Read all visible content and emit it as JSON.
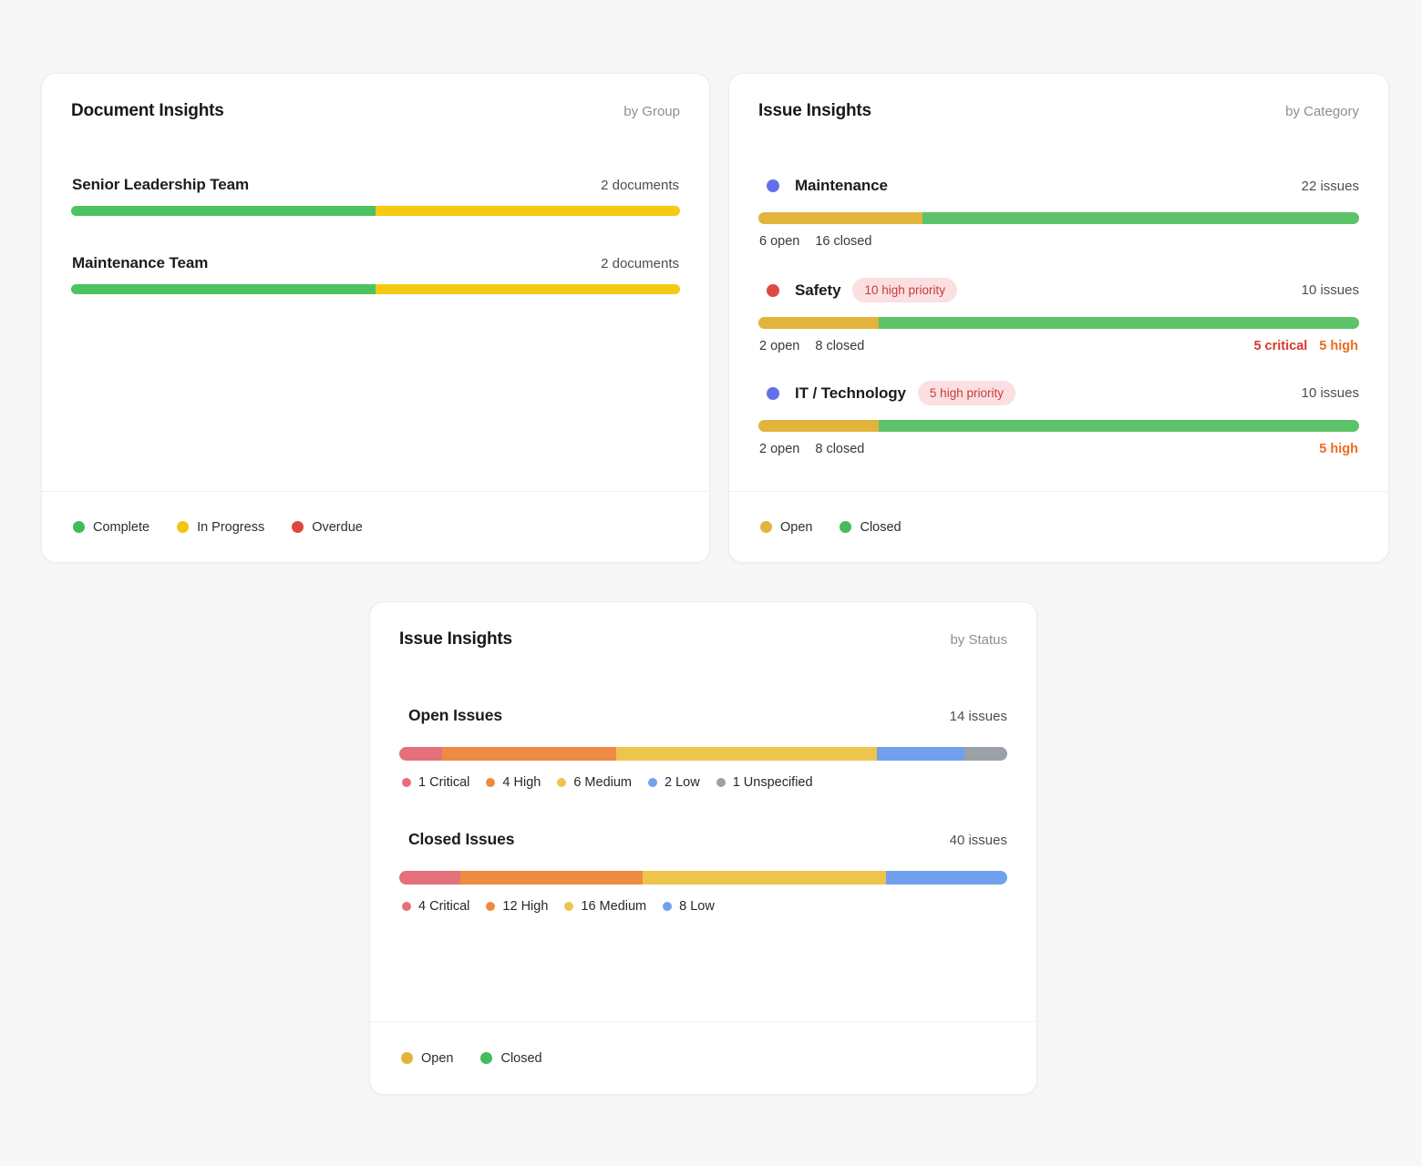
{
  "page": {
    "background": "#f7f7f8"
  },
  "cards": {
    "doc": {
      "title": "Document Insights",
      "subtitle": "by Group",
      "rows": [
        {
          "label": "Senior Leadership Team",
          "count": "2 documents",
          "segments": [
            {
              "label": "Complete",
              "color": "#4cc361",
              "pct": 50
            },
            {
              "label": "In Progress",
              "color": "#f6c913",
              "pct": 50
            }
          ]
        },
        {
          "label": "Maintenance Team",
          "count": "2 documents",
          "segments": [
            {
              "label": "Complete",
              "color": "#4cc361",
              "pct": 50
            },
            {
              "label": "In Progress",
              "color": "#f6c913",
              "pct": 50
            }
          ]
        }
      ],
      "legend": [
        {
          "label": "Complete",
          "color": "#3fbc5a"
        },
        {
          "label": "In Progress",
          "color": "#f2c40e"
        },
        {
          "label": "Overdue",
          "color": "#e0473c"
        }
      ]
    },
    "cat": {
      "title": "Issue Insights",
      "subtitle": "by Category",
      "badge_bg": "#fbdfe1",
      "badge_text_color": "#c63d39",
      "priority_colors": {
        "critical": "#d63a2c",
        "high": "#ee6a1f"
      },
      "rows": [
        {
          "dot_color": "#6470eb",
          "label": "Maintenance",
          "count": "22 issues",
          "open": "6 open",
          "closed": "16 closed",
          "segments": [
            {
              "label": "Open",
              "color": "#e2b43b",
              "pct": 27.3
            },
            {
              "label": "Closed",
              "color": "#5cc368",
              "pct": 72.7
            }
          ]
        },
        {
          "dot_color": "#dc4b41",
          "label": "Safety",
          "badge": "10 high priority",
          "count": "10 issues",
          "open": "2 open",
          "closed": "8 closed",
          "critical": "5 critical",
          "high": "5 high",
          "segments": [
            {
              "label": "Open",
              "color": "#e2b43b",
              "pct": 20
            },
            {
              "label": "Closed",
              "color": "#5cc368",
              "pct": 80
            }
          ]
        },
        {
          "dot_color": "#6470eb",
          "label": "IT / Technology",
          "badge": "5 high priority",
          "count": "10 issues",
          "open": "2 open",
          "closed": "8 closed",
          "high": "5 high",
          "segments": [
            {
              "label": "Open",
              "color": "#e2b43b",
              "pct": 20
            },
            {
              "label": "Closed",
              "color": "#5cc368",
              "pct": 80
            }
          ]
        }
      ],
      "legend": [
        {
          "label": "Open",
          "color": "#e2b43b"
        },
        {
          "label": "Closed",
          "color": "#44bb5c"
        }
      ]
    },
    "status": {
      "title": "Issue Insights",
      "subtitle": "by Status",
      "rows": [
        {
          "label": "Open Issues",
          "count": "14 issues",
          "segments": [
            {
              "label": "1 Critical",
              "color": "#e4707b",
              "pct": 7.1
            },
            {
              "label": "4 High",
              "color": "#ec8b41",
              "pct": 28.6
            },
            {
              "label": "6 Medium",
              "color": "#efc44d",
              "pct": 42.9
            },
            {
              "label": "2 Low",
              "color": "#71a1ee",
              "pct": 14.3
            },
            {
              "label": "1 Unspecified",
              "color": "#9ca1a8",
              "pct": 7.1
            }
          ]
        },
        {
          "label": "Closed Issues",
          "count": "40 issues",
          "segments": [
            {
              "label": "4 Critical",
              "color": "#e4707b",
              "pct": 10
            },
            {
              "label": "12 High",
              "color": "#ec8b41",
              "pct": 30
            },
            {
              "label": "16 Medium",
              "color": "#efc44d",
              "pct": 40
            },
            {
              "label": "8 Low",
              "color": "#71a1ee",
              "pct": 20
            }
          ]
        }
      ],
      "legend": [
        {
          "label": "Open",
          "color": "#e2b43b"
        },
        {
          "label": "Closed",
          "color": "#44bb5c"
        }
      ]
    }
  },
  "chart_data": [
    {
      "type": "bar",
      "stacked": true,
      "orientation": "horizontal",
      "title": "Document Insights",
      "subtitle": "by Group",
      "categories": [
        "Senior Leadership Team",
        "Maintenance Team"
      ],
      "series": [
        {
          "name": "Complete",
          "values": [
            1,
            1
          ]
        },
        {
          "name": "In Progress",
          "values": [
            1,
            1
          ]
        },
        {
          "name": "Overdue",
          "values": [
            0,
            0
          ]
        }
      ],
      "totals": [
        "2 documents",
        "2 documents"
      ],
      "legend": [
        "Complete",
        "In Progress",
        "Overdue"
      ],
      "legend_position": "bottom"
    },
    {
      "type": "bar",
      "stacked": true,
      "orientation": "horizontal",
      "title": "Issue Insights",
      "subtitle": "by Category",
      "categories": [
        "Maintenance",
        "Safety",
        "IT / Technology"
      ],
      "series": [
        {
          "name": "Open",
          "values": [
            6,
            2,
            2
          ]
        },
        {
          "name": "Closed",
          "values": [
            16,
            8,
            8
          ]
        }
      ],
      "totals": [
        22,
        10,
        10
      ],
      "annotations": {
        "Safety": {
          "badge": "10 high priority",
          "critical": 5,
          "high": 5
        },
        "IT / Technology": {
          "badge": "5 high priority",
          "high": 5
        }
      },
      "legend": [
        "Open",
        "Closed"
      ],
      "legend_position": "bottom"
    },
    {
      "type": "bar",
      "stacked": true,
      "orientation": "horizontal",
      "title": "Issue Insights",
      "subtitle": "by Status",
      "categories": [
        "Open Issues",
        "Closed Issues"
      ],
      "series": [
        {
          "name": "Critical",
          "values": [
            1,
            4
          ]
        },
        {
          "name": "High",
          "values": [
            4,
            12
          ]
        },
        {
          "name": "Medium",
          "values": [
            6,
            16
          ]
        },
        {
          "name": "Low",
          "values": [
            2,
            8
          ]
        },
        {
          "name": "Unspecified",
          "values": [
            1,
            0
          ]
        }
      ],
      "totals": [
        14,
        40
      ],
      "legend": [
        "Open",
        "Closed"
      ],
      "legend_position": "bottom"
    }
  ]
}
